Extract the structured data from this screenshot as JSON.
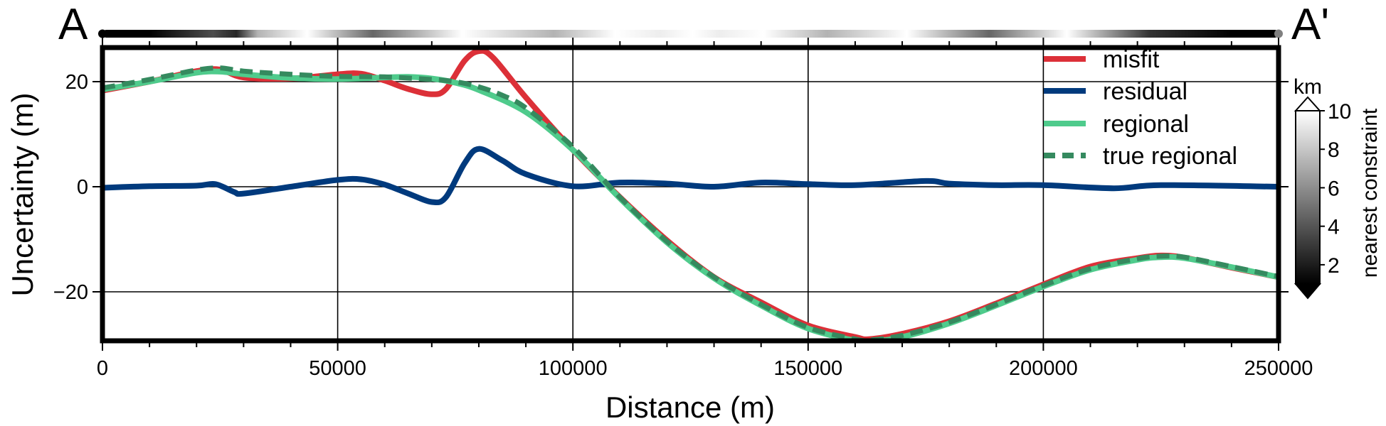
{
  "chart_data": {
    "type": "line",
    "title": "",
    "xlabel": "Distance (m)",
    "ylabel": "Uncertainty (m)",
    "xlim": [
      0,
      250000
    ],
    "ylim": [
      -29.5,
      26.5
    ],
    "grid": true,
    "x_ticks": [
      0,
      50000,
      100000,
      150000,
      200000,
      250000
    ],
    "x_tick_labels": [
      "0",
      "50000",
      "100000",
      "150000",
      "200000",
      "250000"
    ],
    "x_minor_tick_step": 10000,
    "y_ticks": [
      -20,
      0,
      20
    ],
    "y_tick_labels": [
      "−20",
      "0",
      "20"
    ],
    "profile_labels": {
      "start": "A",
      "end": "A'"
    },
    "legend_position": "upper right (inside)",
    "series": [
      {
        "name": "misfit",
        "color": "#dc3038",
        "style": "solid",
        "x": [
          0,
          10000,
          20000,
          25000,
          30000,
          40000,
          50000,
          55000,
          60000,
          65000,
          70000,
          73000,
          77000,
          80000,
          83000,
          90000,
          100000,
          110000,
          120000,
          130000,
          140000,
          150000,
          160000,
          163000,
          170000,
          180000,
          190000,
          200000,
          210000,
          220000,
          225000,
          230000,
          240000,
          250000
        ],
        "values": [
          18.3,
          20.0,
          22.0,
          22.3,
          20.8,
          20.6,
          21.4,
          21.5,
          20.2,
          18.6,
          17.6,
          18.6,
          24.0,
          25.8,
          24.6,
          17.0,
          7.0,
          -2.0,
          -10.2,
          -17.2,
          -22.0,
          -26.4,
          -28.6,
          -29.0,
          -28.0,
          -25.6,
          -22.2,
          -18.6,
          -15.2,
          -13.6,
          -13.1,
          -13.5,
          -15.4,
          -17.2
        ]
      },
      {
        "name": "residual",
        "color": "#003a7d",
        "style": "solid",
        "x": [
          0,
          10000,
          20000,
          24000,
          28000,
          30000,
          40000,
          50000,
          55000,
          60000,
          65000,
          70000,
          73000,
          77000,
          80000,
          85000,
          90000,
          100000,
          110000,
          120000,
          130000,
          140000,
          150000,
          160000,
          175000,
          180000,
          190000,
          200000,
          215000,
          225000,
          250000
        ],
        "values": [
          -0.2,
          0.1,
          0.2,
          0.5,
          -1.0,
          -1.3,
          0.0,
          1.3,
          1.4,
          0.4,
          -1.3,
          -2.9,
          -2.0,
          4.5,
          7.2,
          5.0,
          2.4,
          0.1,
          0.8,
          0.6,
          0.0,
          0.8,
          0.5,
          0.3,
          1.1,
          0.6,
          0.3,
          0.3,
          -0.3,
          0.3,
          0.0
        ]
      },
      {
        "name": "regional",
        "color": "#4fcb8c",
        "style": "solid",
        "x": [
          0,
          10000,
          20000,
          25000,
          30000,
          40000,
          50000,
          60000,
          65000,
          70000,
          75000,
          80000,
          90000,
          100000,
          110000,
          120000,
          130000,
          140000,
          150000,
          160000,
          163000,
          170000,
          180000,
          190000,
          200000,
          210000,
          220000,
          225000,
          230000,
          240000,
          250000
        ],
        "values": [
          18.5,
          20.0,
          21.7,
          21.9,
          21.4,
          20.7,
          20.5,
          20.8,
          20.9,
          20.6,
          19.8,
          18.4,
          14.2,
          7.0,
          -2.2,
          -10.6,
          -17.4,
          -22.6,
          -27.0,
          -29.3,
          -29.5,
          -28.6,
          -26.0,
          -22.6,
          -19.0,
          -15.8,
          -13.9,
          -13.4,
          -13.6,
          -15.3,
          -17.2
        ]
      },
      {
        "name": "true regional",
        "color": "#358a5f",
        "style": "dashed",
        "x": [
          0,
          10000,
          20000,
          25000,
          30000,
          40000,
          50000,
          60000,
          70000,
          75000,
          80000,
          85000,
          90000,
          100000,
          110000,
          120000,
          130000,
          140000,
          150000,
          160000,
          163000,
          170000,
          180000,
          190000,
          200000,
          210000,
          220000,
          225000,
          230000,
          240000,
          250000
        ],
        "values": [
          18.8,
          20.4,
          22.2,
          22.6,
          22.0,
          21.4,
          21.0,
          20.9,
          20.4,
          20.0,
          19.0,
          17.4,
          15.0,
          7.6,
          -2.0,
          -10.4,
          -17.2,
          -22.4,
          -26.8,
          -29.0,
          -29.2,
          -28.3,
          -25.8,
          -22.4,
          -18.8,
          -15.6,
          -13.7,
          -13.2,
          -13.4,
          -15.2,
          -17.1
        ]
      }
    ],
    "distance_bar": {
      "description": "Grayscale strip above plot showing distance to nearest constraint along profile",
      "segments_km": [
        {
          "x0": 0,
          "x1": 20000,
          "value": 0
        },
        {
          "x0": 20000,
          "x1": 27000,
          "value": 3
        },
        {
          "x0": 27000,
          "x1": 30000,
          "value": 1.5
        },
        {
          "x0": 30000,
          "x1": 36000,
          "value": 7
        },
        {
          "x0": 36000,
          "x1": 51000,
          "value": 10
        },
        {
          "x0": 51000,
          "x1": 64000,
          "value": 4
        },
        {
          "x0": 64000,
          "x1": 89000,
          "value": 10
        },
        {
          "x0": 89000,
          "x1": 103000,
          "value": 7
        },
        {
          "x0": 103000,
          "x1": 115000,
          "value": 10
        },
        {
          "x0": 115000,
          "x1": 122000,
          "value": 9.3
        },
        {
          "x0": 122000,
          "x1": 129000,
          "value": 10
        },
        {
          "x0": 129000,
          "x1": 133000,
          "value": 9.3
        },
        {
          "x0": 133000,
          "x1": 148000,
          "value": 10
        },
        {
          "x0": 148000,
          "x1": 160000,
          "value": 7
        },
        {
          "x0": 160000,
          "x1": 182000,
          "value": 10
        },
        {
          "x0": 182000,
          "x1": 195000,
          "value": 4
        },
        {
          "x0": 195000,
          "x1": 215000,
          "value": 10
        },
        {
          "x0": 215000,
          "x1": 230000,
          "value": 2
        },
        {
          "x0": 230000,
          "x1": 250000,
          "value": 0
        }
      ]
    },
    "colorbar": {
      "label": "nearest constraint",
      "unit": "km",
      "range": [
        1,
        10
      ],
      "ticks": [
        2,
        4,
        6,
        8,
        10
      ],
      "tick_labels": [
        "2",
        "4",
        "6",
        "8",
        "10"
      ],
      "colormap": "grayscale (black to white)",
      "extend": "both"
    }
  },
  "labels": {
    "start": "A",
    "end": "A'",
    "xlabel": "Distance (m)",
    "ylabel": "Uncertainty (m)",
    "cbar_unit": "km",
    "cbar_label": "nearest constraint"
  },
  "legend": [
    {
      "label": "misfit"
    },
    {
      "label": "residual"
    },
    {
      "label": "regional"
    },
    {
      "label": "true regional"
    }
  ]
}
